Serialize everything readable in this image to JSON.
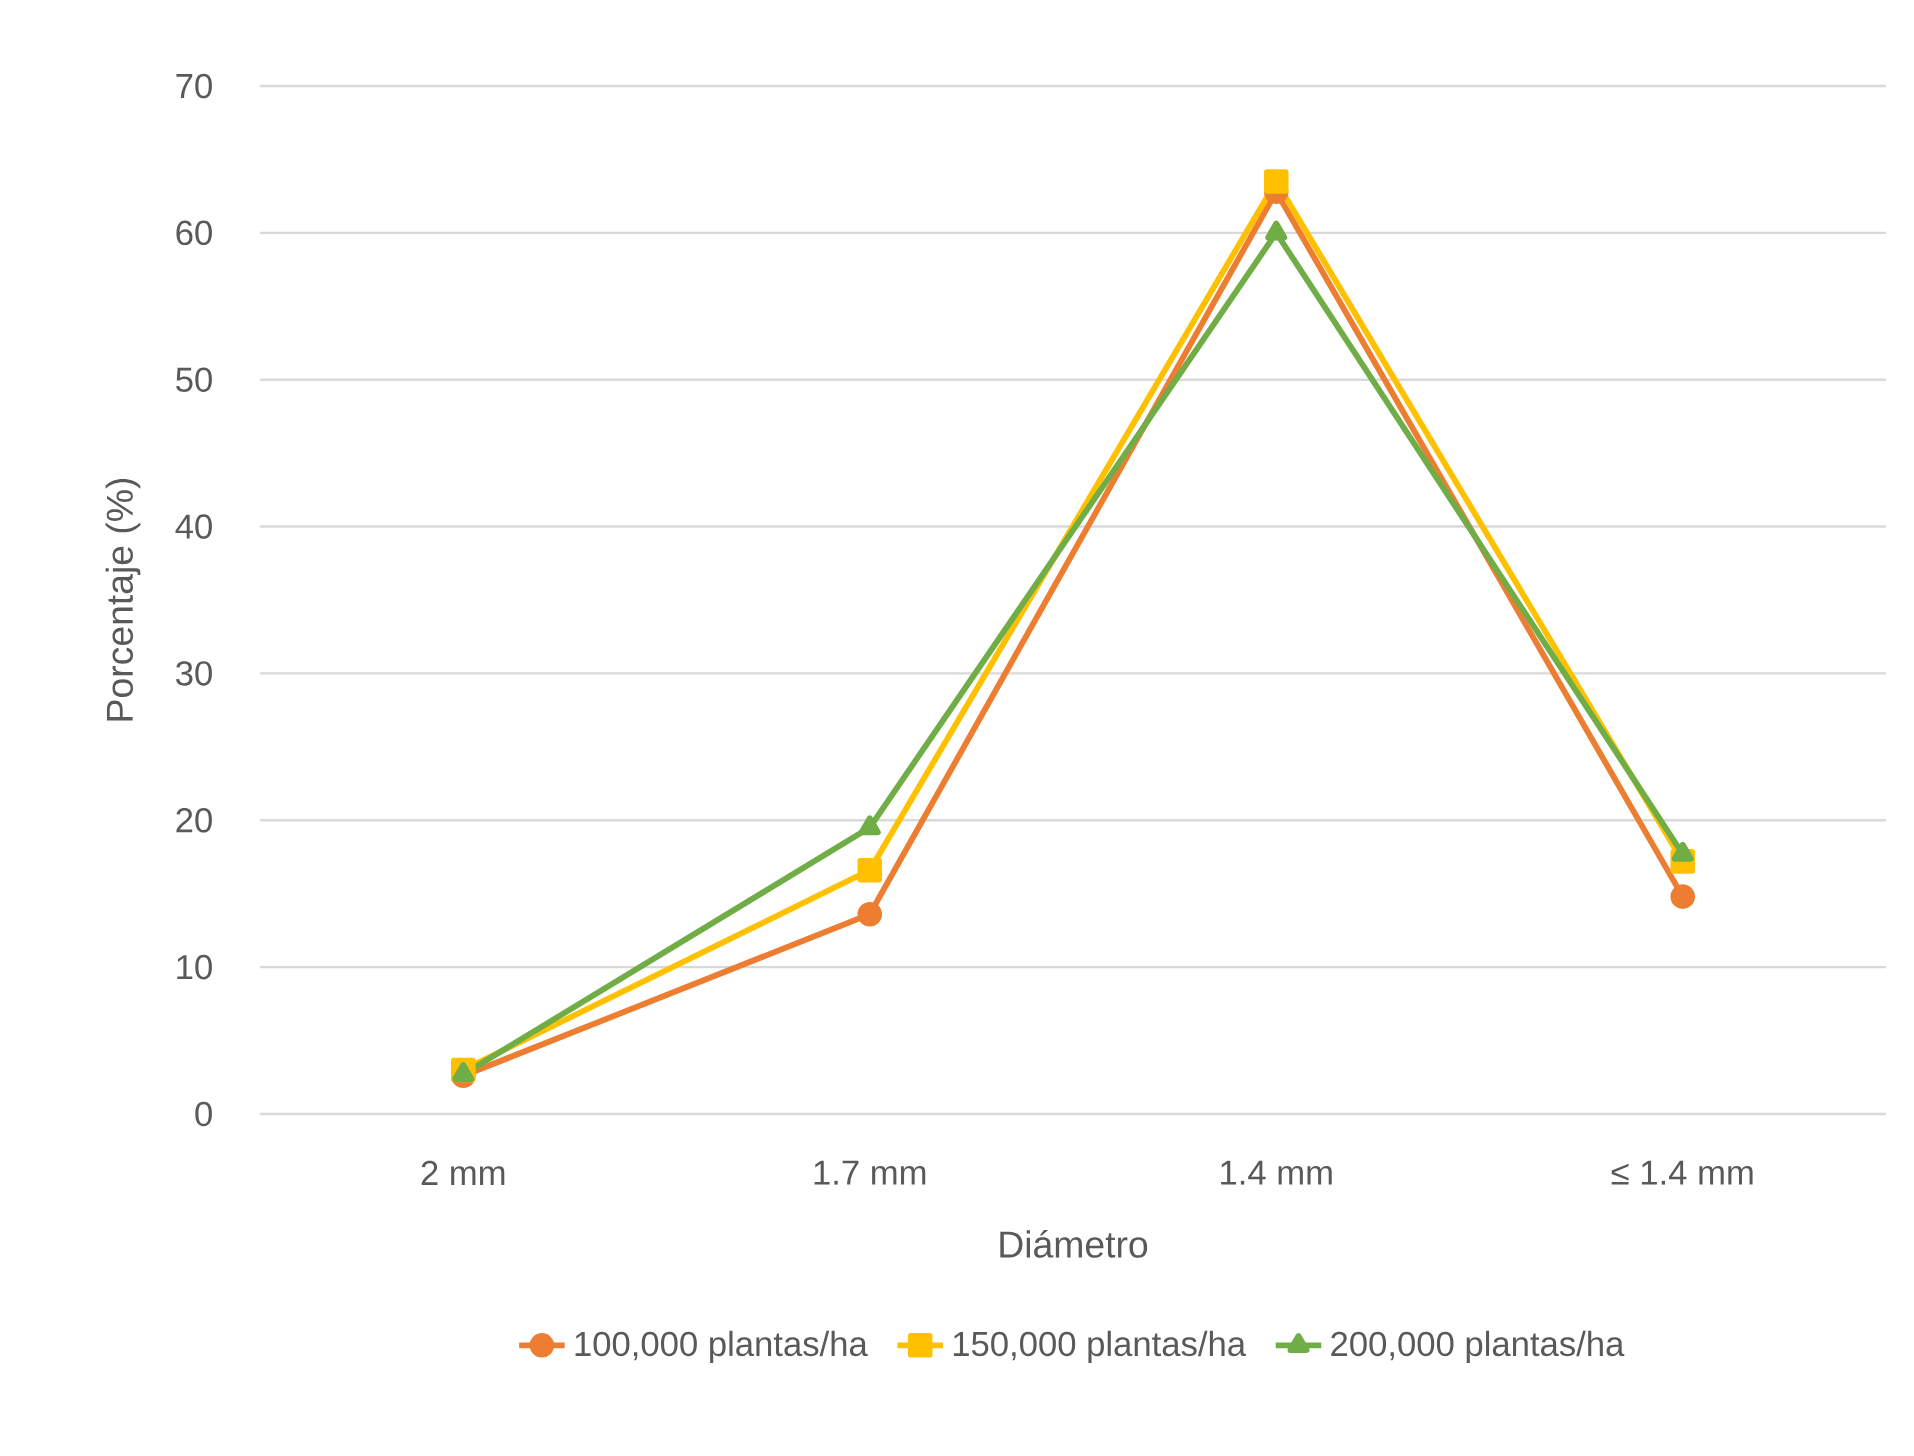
{
  "chart_data": {
    "type": "line",
    "xlabel": "Diámetro",
    "ylabel": "Porcentaje (%)",
    "categories": [
      "2 mm",
      "1.7 mm",
      "1.4 mm",
      "≤ 1.4 mm"
    ],
    "series": [
      {
        "name": "100,000 plantas/ha",
        "color": "#ed7d31",
        "marker": "circle",
        "values": [
          2.6,
          13.6,
          62.8,
          14.8
        ]
      },
      {
        "name": "150,000 plantas/ha",
        "color": "#ffc000",
        "marker": "square",
        "values": [
          3.0,
          16.6,
          63.5,
          17.2
        ]
      },
      {
        "name": "200,000 plantas/ha",
        "color": "#70ad47",
        "marker": "triangle",
        "values": [
          2.7,
          19.5,
          60.0,
          17.7
        ]
      }
    ],
    "ylim": [
      0,
      70
    ],
    "yticks": [
      0,
      10,
      20,
      30,
      40,
      50,
      60,
      70
    ],
    "grid": "y",
    "legend": "bottom",
    "line_style": "solid"
  }
}
